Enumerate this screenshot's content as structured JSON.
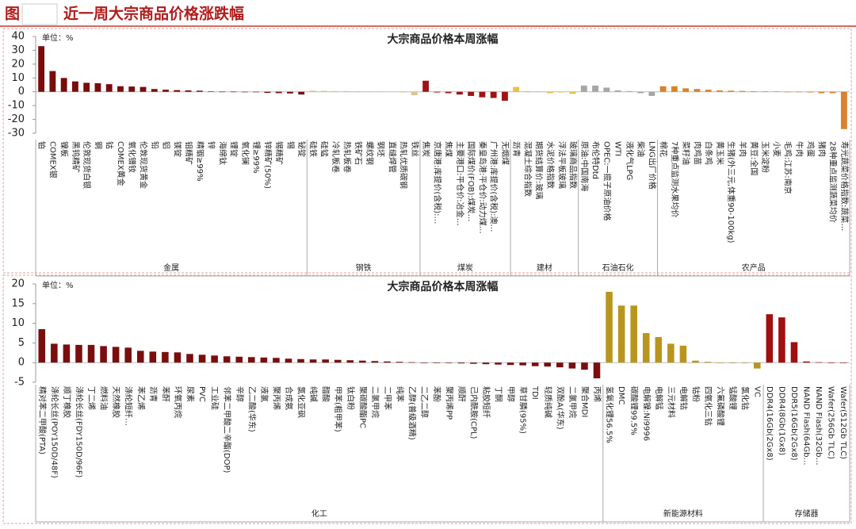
{
  "header": {
    "prefix": "图",
    "title": "近一周大宗商品价格涨跌幅"
  },
  "chart_data": [
    {
      "type": "bar",
      "title": "大宗商品价格本周涨幅",
      "unit_label": "单位：%",
      "ylim": [
        -30,
        40
      ],
      "yticks": [
        -30,
        -20,
        -10,
        0,
        10,
        20,
        30,
        40
      ],
      "groups": [
        {
          "name": "金属",
          "color": "#7a0c0c",
          "categories": [
            "铂",
            "COMEX银",
            "镍板",
            "黑钨精矿",
            "伦敦现货白银",
            "铜",
            "钴",
            "COMEX黄金",
            "氧化镨钕",
            "伦敦现货黄金",
            "铅",
            "铝",
            "镁锭",
            "钼精矿",
            "精铟≥99%",
            "锌",
            "海绵钛",
            "锂锭",
            "氧化镧",
            "锂≥99%",
            "锌精矿(50%)",
            "锡精矿",
            "锡",
            "铋锭"
          ],
          "values": [
            33,
            15,
            10,
            7.5,
            6.5,
            6.2,
            5.5,
            4,
            3.8,
            3.5,
            2,
            1.5,
            1.2,
            1,
            0.8,
            0.2,
            0.1,
            0.1,
            0,
            0,
            -0.8,
            -1,
            -1.2,
            -2
          ]
        },
        {
          "name": "钢铁",
          "color": "#d8c48e",
          "categories": [
            "硅铁",
            "硅锰",
            "冷轧板卷",
            "热轧板卷",
            "铁矿石",
            "螺纹钢",
            "钢坯",
            "直缝焊管",
            "热轧优质碳钢",
            "铁丝"
          ],
          "values": [
            0.8,
            0.7,
            0.5,
            0.5,
            0.4,
            0.3,
            0.3,
            0.2,
            -0.5,
            -2.5
          ]
        },
        {
          "name": "煤炭",
          "color": "#9e1414",
          "categories": [
            "焦炭",
            "京唐港:库提价(含税):…",
            "焦煤",
            "主要港口:平仓价:冶金…",
            "国际煤价(FOB):煤炭…",
            "秦皇岛港:平仓价:动力煤…",
            "广州港:库提价(含税):澳…",
            "无烟煤"
          ],
          "values": [
            8,
            -0.5,
            -1,
            -2,
            -3,
            -4,
            -4.5,
            -6.5
          ]
        },
        {
          "name": "建材",
          "color": "#e8c04a",
          "categories": [
            "沥青",
            "混凝土综合指数",
            "期货结算价:玻璃",
            "水泥价格指数",
            "浮法平板玻璃",
            "玻璃商品指数"
          ],
          "values": [
            3.5,
            0.5,
            0.3,
            -1,
            -0.5,
            -1.5
          ]
        },
        {
          "name": "石油石化",
          "color": "#a6a6a6",
          "categories": [
            "原油:中国南海",
            "布伦特Dtd",
            "OPEC:一揽子原油价格",
            "WTI",
            "液化气LPG",
            "柴油",
            "LNG出厂价格"
          ],
          "values": [
            4.5,
            4.5,
            3,
            1,
            0.5,
            -1,
            -3
          ]
        },
        {
          "name": "农产品",
          "color": "#d9822b",
          "categories": [
            "棉花",
            "7种重点监测水果均价",
            "菜籽油",
            "肉鸡苗",
            "白条鸡",
            "黄玉米",
            "生猪(外三元,体重90-100kg)",
            "羊肉",
            "黄豆:全国",
            "玉米淀粉",
            "小麦",
            "毛鸡:江苏:南京",
            "牛肉",
            "鸡蛋",
            "猪肉",
            "28种重点监测蔬菜均价",
            "寿光蔬菜价格指数:蔬菜…"
          ],
          "values": [
            4,
            4,
            2.5,
            2,
            1.5,
            1,
            0.8,
            0.6,
            0.4,
            0.3,
            0.2,
            0,
            -0.3,
            -0.5,
            -1,
            -1,
            -27
          ]
        }
      ]
    },
    {
      "type": "bar",
      "title": "大宗商品价格本周涨幅",
      "unit_label": "单位：%",
      "ylim": [
        -5,
        20
      ],
      "yticks": [
        -5,
        0,
        5,
        10,
        15,
        20
      ],
      "groups": [
        {
          "name": "化工",
          "color": "#7a0e0e",
          "categories": [
            "精对苯二甲酸(PTA)",
            "涤纶长丝(POY150D/48F)",
            "顺丁橡胶",
            "涤纶长丝(FDY150D/96F)",
            "丁二烯",
            "燃料油",
            "天然橡胶",
            "涤纶短纤…",
            "苯乙烯",
            "沥青",
            "苯酐",
            "环氧丙烷",
            "尿素",
            "PVC",
            "工业硅",
            "邻苯二甲酸二辛酯(DOP)",
            "辛醇",
            "乙二酸(华东)",
            "液氯",
            "聚丙烯",
            "合成氨",
            "氯化亚砜",
            "纯碱",
            "醋酸",
            "甲苯(粗甲苯)",
            "钛白粉",
            "聚碳酸酯PC",
            "二氯甲烷",
            "二甲苯",
            "纯苯",
            "乙醇(普级酒精)",
            "二乙二醇",
            "苯酚",
            "聚丙烯PP",
            "顺酐",
            "己内酰胺(CPL)",
            "粘胶短纤",
            "丁酮",
            "甲醇",
            "草甘膦(95%)",
            "TDI",
            "轻质纯碱",
            "双酚A(华东)",
            "二氯甲烷",
            "聚合MDI",
            "丙烯"
          ],
          "values": [
            8.5,
            4.8,
            4.6,
            4.5,
            4.5,
            4.2,
            4,
            3.8,
            3,
            2.8,
            2.7,
            2.6,
            2.2,
            2,
            1.8,
            1.6,
            1.5,
            1.4,
            1.3,
            1.2,
            1,
            0.9,
            0.8,
            0.8,
            0.7,
            0.6,
            0.5,
            0.4,
            0.3,
            0.2,
            0.1,
            0,
            0,
            -0.1,
            -0.2,
            -0.3,
            -0.4,
            -0.5,
            -0.6,
            -0.7,
            -0.9,
            -1,
            -1.2,
            -1.5,
            -1.8,
            -4
          ]
        },
        {
          "name": "新能源材料",
          "color": "#b8961e",
          "categories": [
            "氢氧化锂56.5%",
            "DMC",
            "碳酸锂99.5%",
            "电解镍:Ni9996",
            "电解锰",
            "三元材料",
            "电解钴",
            "钴粉",
            "四氧化三钴",
            "六氟磷酸锂",
            "锰酸锂",
            "氯化钴",
            "VC"
          ],
          "values": [
            18,
            14.5,
            14.5,
            7.5,
            6.5,
            4.8,
            4.3,
            0.5,
            0.2,
            0,
            0,
            0,
            -1.5
          ]
        },
        {
          "name": "存储器",
          "color": "#a01010",
          "categories": [
            "DDR4(16Gb(2Gx8)",
            "DDR4(8Gb(1Gx8)",
            "DDR5(16Gb(2Gx8)",
            "NAND Flash(64Gb…",
            "NAND Flash(32Gb…",
            "Wafer(256Gb TLC)",
            "Wafer(512Gb TLC)"
          ],
          "values": [
            12.3,
            11.5,
            5.2,
            0.3,
            0.1,
            0,
            -0.1
          ]
        }
      ]
    }
  ]
}
